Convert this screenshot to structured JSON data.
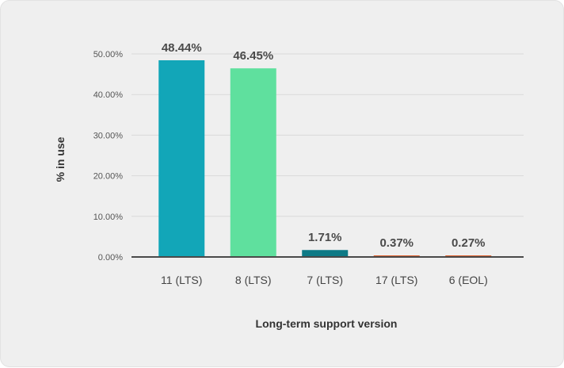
{
  "chart_data": {
    "type": "bar",
    "title": "",
    "xlabel": "Long-term support version",
    "ylabel": "% in use",
    "categories": [
      "11 (LTS)",
      "8 (LTS)",
      "7 (LTS)",
      "17 (LTS)",
      "6 (EOL)"
    ],
    "values": [
      48.44,
      46.45,
      1.71,
      0.37,
      0.27
    ],
    "value_labels": [
      "48.44%",
      "46.45%",
      "1.71%",
      "0.37%",
      "0.27%"
    ],
    "bar_colors": [
      "#12a6b8",
      "#5fe09e",
      "#0e7a86",
      "#e0622e",
      "#e0622e"
    ],
    "ylim": [
      0,
      50
    ],
    "yticks": [
      0,
      10,
      20,
      30,
      40,
      50
    ],
    "ytick_labels": [
      "0.00%",
      "10.00%",
      "20.00%",
      "30.00%",
      "40.00%",
      "50.00%"
    ],
    "grid": true,
    "legend": "none"
  }
}
